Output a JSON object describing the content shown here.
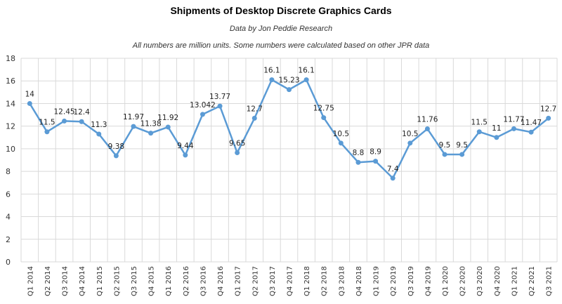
{
  "chart_data": {
    "type": "line",
    "title": "Shipments of Desktop Discrete Graphics Cards",
    "subtitle": "Data by Jon Peddie Research",
    "note": "All numbers are million units. Some numbers were calculated based on other JPR data",
    "xlabel": "",
    "ylabel": "",
    "ylim": [
      0,
      18
    ],
    "yticks": [
      0,
      2,
      4,
      6,
      8,
      10,
      12,
      14,
      16,
      18
    ],
    "grid": true,
    "legend": "none",
    "line_color": "#5b9bd5",
    "categories": [
      "Q1 2014",
      "Q2 2014",
      "Q3 2014",
      "Q4 2014",
      "Q1 2015",
      "Q2 2015",
      "Q3 2015",
      "Q4 2015",
      "Q1 2016",
      "Q2 2016",
      "Q3 2016",
      "Q4 2016",
      "Q1 2017",
      "Q2 2017",
      "Q3 2017",
      "Q4 2017",
      "Q1 2018",
      "Q2 2018",
      "Q3 2018",
      "Q4 2018",
      "Q1 2019",
      "Q2 2019",
      "Q3 2019",
      "Q4 2019",
      "Q1 2020",
      "Q2 2020",
      "Q3 2020",
      "Q4 2020",
      "Q1 2021",
      "Q2 2021",
      "Q3 2021"
    ],
    "series": [
      {
        "values": [
          14,
          11.5,
          12.45,
          12.4,
          11.3,
          9.38,
          11.97,
          11.38,
          11.92,
          9.44,
          13.042,
          13.77,
          9.65,
          12.7,
          16.1,
          15.23,
          16.1,
          12.75,
          10.5,
          8.8,
          8.9,
          7.4,
          10.5,
          11.76,
          9.5,
          9.5,
          11.5,
          11,
          11.77,
          11.47,
          12.7
        ],
        "labels": [
          "14",
          "11.5",
          "12.45",
          "12.4",
          "11.3",
          "9.38",
          "11.97",
          "11.38",
          "11.92",
          "9.44",
          "13.042",
          "13.77",
          "9.65",
          "12.7",
          "16.1",
          "15.23",
          "16.1",
          "12.75",
          "10.5",
          "8.8",
          "8.9",
          "7.4",
          "10.5",
          "11.76",
          "9.5",
          "9.5",
          "11.5",
          "11",
          "11.77",
          "11.47",
          "12.7"
        ]
      }
    ]
  }
}
